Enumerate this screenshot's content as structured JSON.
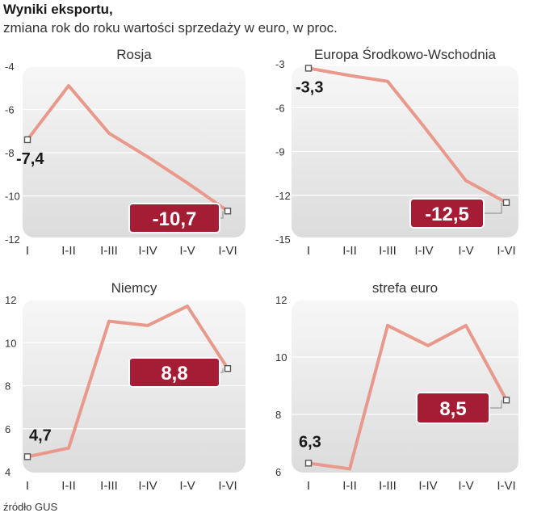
{
  "header": {
    "title": "Wyniki eksportu,",
    "subtitle": "zmiana rok do roku wartości sprzedaży w euro, w proc."
  },
  "source": "źródło GUS",
  "colors": {
    "line": "#e8998c",
    "callout": "#a51d35",
    "panel_top": "#f7f7f7",
    "panel_bottom": "#dcdcdc",
    "marker": "#555555"
  },
  "chart_data": [
    {
      "type": "line",
      "title": "Rosja",
      "categories": [
        "I",
        "I-II",
        "I-III",
        "I-IV",
        "I-V",
        "I-VI"
      ],
      "values": [
        -7.4,
        -4.9,
        -7.1,
        -8.2,
        -9.4,
        -10.7
      ],
      "ylim": [
        -12,
        -4
      ],
      "yticks": [
        "-4",
        "-6",
        "-8",
        "-10",
        "-12"
      ],
      "first_label": "-7,4",
      "last_label": "-10,7"
    },
    {
      "type": "line",
      "title": "Europa Środkowo-Wschodnia",
      "categories": [
        "I",
        "I-II",
        "I-III",
        "I-IV",
        "I-V",
        "I-VI"
      ],
      "values": [
        -3.3,
        -3.8,
        -4.2,
        -7.3,
        -11.0,
        -12.5
      ],
      "ylim": [
        -15,
        -3
      ],
      "yticks": [
        "-3",
        "-6",
        "-9",
        "-12",
        "-15"
      ],
      "first_label": "-3,3",
      "last_label": "-12,5"
    },
    {
      "type": "line",
      "title": "Niemcy",
      "categories": [
        "I",
        "I-II",
        "I-III",
        "I-IV",
        "I-V",
        "I-VI"
      ],
      "values": [
        4.7,
        5.1,
        11.0,
        10.8,
        11.7,
        8.8
      ],
      "ylim": [
        4,
        12
      ],
      "yticks": [
        "12",
        "10",
        "8",
        "6",
        "4"
      ],
      "first_label": "4,7",
      "last_label": "8,8"
    },
    {
      "type": "line",
      "title": "strefa euro",
      "categories": [
        "I",
        "I-II",
        "I-III",
        "I-IV",
        "I-V",
        "I-VI"
      ],
      "values": [
        6.3,
        6.1,
        11.1,
        10.4,
        11.1,
        8.5
      ],
      "ylim": [
        6,
        12
      ],
      "yticks": [
        "12",
        "10",
        "8",
        "6"
      ],
      "first_label": "6,3",
      "last_label": "8,5"
    }
  ]
}
